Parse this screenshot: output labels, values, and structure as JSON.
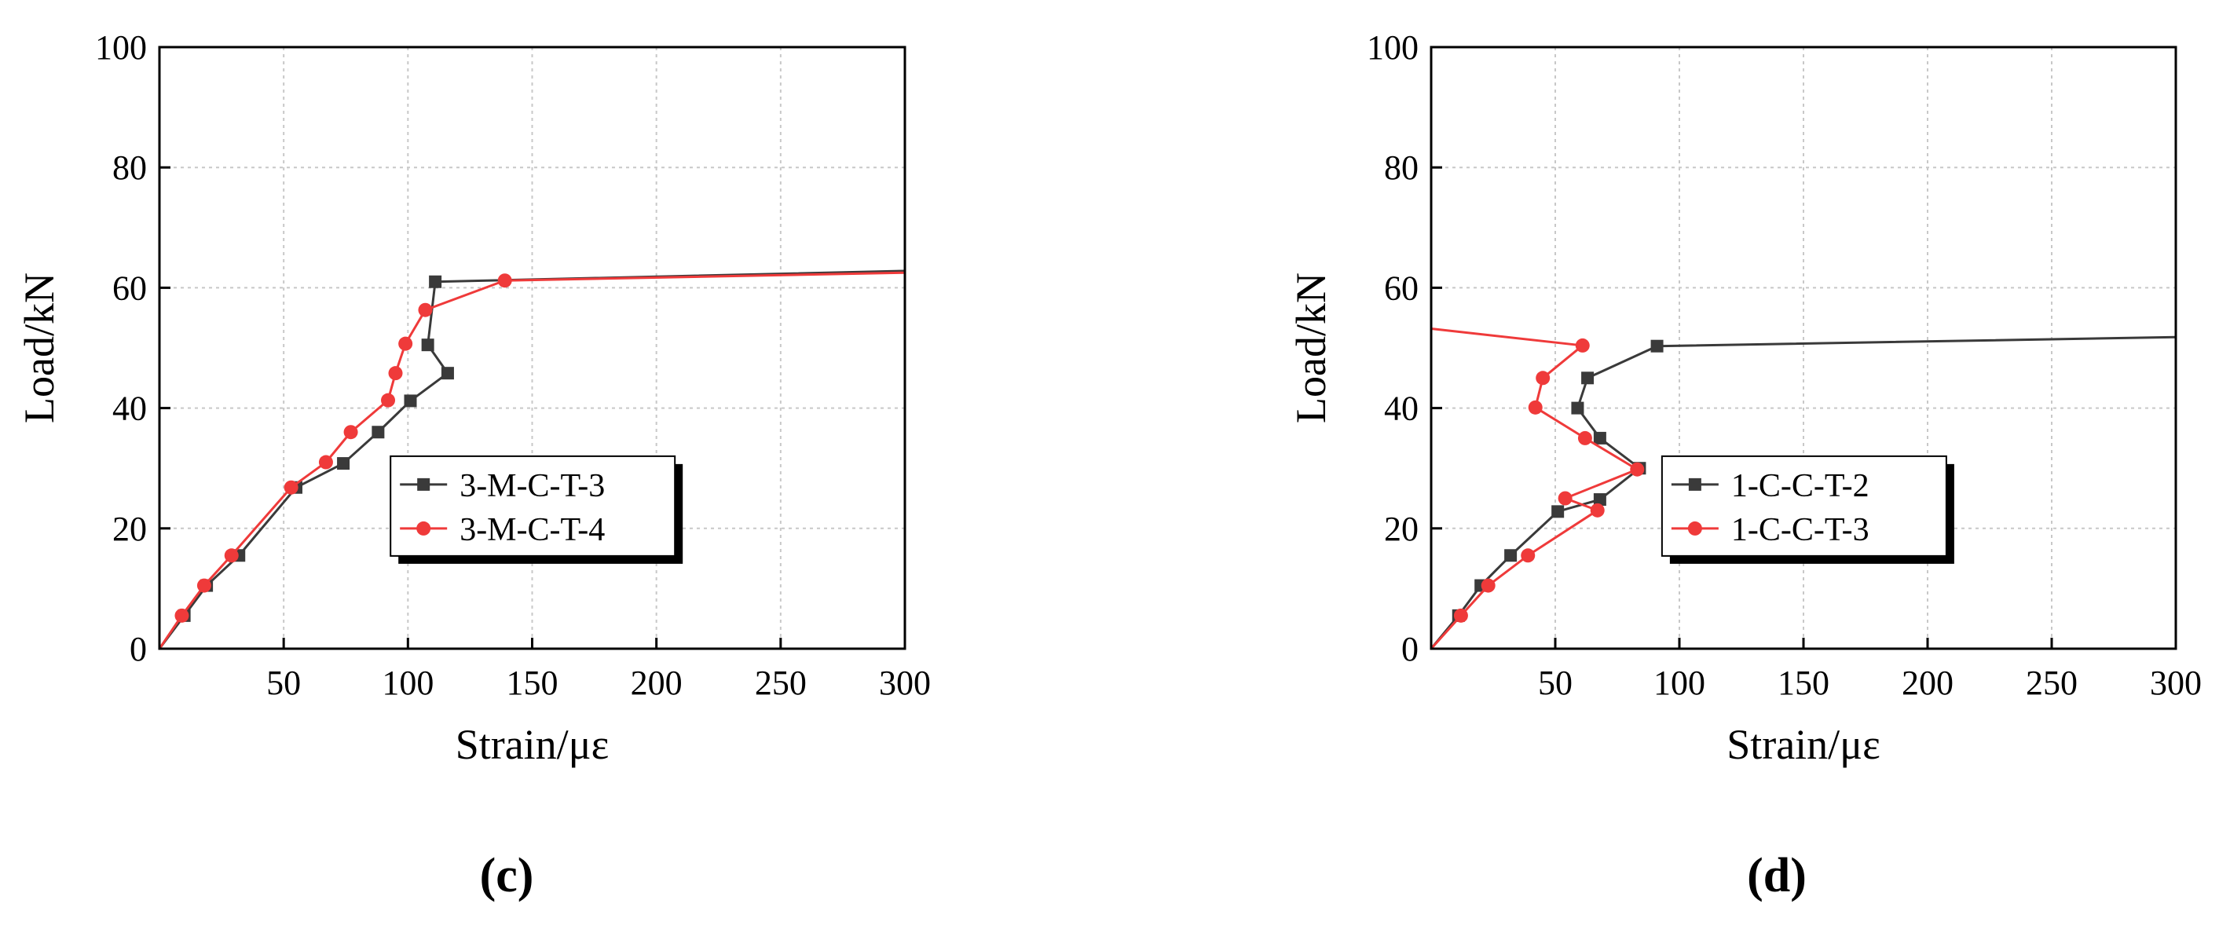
{
  "colors": {
    "series_black": "#3a3a3a",
    "series_red": "#ef3a3a",
    "grid": "#c8c8c8",
    "axis": "#000000"
  },
  "chart_data": [
    {
      "panel_label": "(c)",
      "type": "line",
      "xlabel": "Strain/με",
      "ylabel": "Load/kN",
      "xlim": [
        0,
        300
      ],
      "ylim": [
        0,
        100
      ],
      "x_ticks": [
        50,
        100,
        150,
        200,
        250,
        300
      ],
      "y_ticks": [
        0,
        20,
        40,
        60,
        80,
        100
      ],
      "grid": true,
      "legend_position": "center-right",
      "series": [
        {
          "name": "3-M-C-T-3",
          "color": "#3a3a3a",
          "marker": "square",
          "points": [
            [
              0,
              0
            ],
            [
              10,
              5.5
            ],
            [
              19,
              10.5
            ],
            [
              32,
              15.5
            ],
            [
              55,
              26.8
            ],
            [
              74,
              30.8
            ],
            [
              88,
              36
            ],
            [
              101,
              41.2
            ],
            [
              116,
              45.8
            ],
            [
              108,
              50.5
            ],
            [
              111,
              61
            ],
            [
              300,
              62.8
            ]
          ]
        },
        {
          "name": "3-M-C-T-4",
          "color": "#ef3a3a",
          "marker": "circle",
          "points": [
            [
              0,
              0
            ],
            [
              9,
              5.5
            ],
            [
              18,
              10.5
            ],
            [
              29,
              15.5
            ],
            [
              53,
              26.8
            ],
            [
              67,
              31
            ],
            [
              77,
              36
            ],
            [
              92,
              41.3
            ],
            [
              95,
              45.8
            ],
            [
              99,
              50.7
            ],
            [
              107,
              56.3
            ],
            [
              139,
              61.2
            ],
            [
              300,
              62.5
            ]
          ]
        }
      ]
    },
    {
      "panel_label": "(d)",
      "type": "line",
      "xlabel": "Strain/με",
      "ylabel": "Load/kN",
      "xlim": [
        0,
        300
      ],
      "ylim": [
        0,
        100
      ],
      "x_ticks": [
        50,
        100,
        150,
        200,
        250,
        300
      ],
      "y_ticks": [
        0,
        20,
        40,
        60,
        80,
        100
      ],
      "grid": true,
      "legend_position": "center-right",
      "series": [
        {
          "name": "1-C-C-T-2",
          "color": "#3a3a3a",
          "marker": "square",
          "points": [
            [
              0,
              0
            ],
            [
              11,
              5.5
            ],
            [
              20,
              10.5
            ],
            [
              32,
              15.5
            ],
            [
              51,
              22.8
            ],
            [
              68,
              24.8
            ],
            [
              84,
              30
            ],
            [
              68,
              35
            ],
            [
              59,
              40
            ],
            [
              63,
              45
            ],
            [
              91,
              50.3
            ],
            [
              300,
              51.8
            ]
          ]
        },
        {
          "name": "1-C-C-T-3",
          "color": "#ef3a3a",
          "marker": "circle",
          "points": [
            [
              0,
              0
            ],
            [
              12,
              5.5
            ],
            [
              23,
              10.5
            ],
            [
              39,
              15.5
            ],
            [
              67,
              23
            ],
            [
              54,
              25
            ],
            [
              83,
              29.8
            ],
            [
              62,
              35
            ],
            [
              42,
              40.1
            ],
            [
              45,
              45
            ],
            [
              61,
              50.4
            ],
            [
              0,
              53.2
            ]
          ]
        }
      ]
    }
  ]
}
